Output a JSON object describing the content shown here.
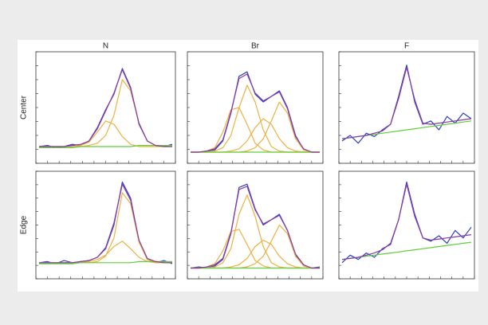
{
  "column_labels": [
    "N",
    "Br",
    "F"
  ],
  "row_labels": [
    "Center",
    "Edge"
  ],
  "chart_data": [
    {
      "type": "line",
      "ylim": [
        0,
        100
      ],
      "series": [
        {
          "color": "#2a3fc9",
          "values": [
            15,
            16,
            14,
            15,
            17,
            16,
            20,
            32,
            48,
            62,
            85,
            68,
            35,
            20,
            16,
            15,
            17
          ]
        },
        {
          "color": "#f0b040",
          "values": [
            15,
            15,
            15,
            15,
            15,
            16,
            19,
            28,
            38,
            35,
            24,
            17,
            15,
            15,
            15,
            15,
            15
          ]
        },
        {
          "color": "#f0b040",
          "values": [
            15,
            15,
            15,
            15,
            15,
            15,
            16,
            18,
            25,
            43,
            75,
            65,
            36,
            20,
            16,
            15,
            15
          ]
        },
        {
          "color": "#5fcf3a",
          "values": [
            14,
            14,
            14,
            14,
            14,
            15,
            15,
            15,
            15,
            15,
            15,
            15,
            16,
            16,
            16,
            16,
            16
          ]
        },
        {
          "color": "#8a3aa0",
          "values": [
            15,
            15,
            15,
            15,
            16,
            17,
            20,
            31,
            47,
            63,
            84,
            67,
            36,
            20,
            16,
            15,
            15
          ]
        }
      ]
    },
    {
      "type": "line",
      "ylim": [
        0,
        100
      ],
      "series": [
        {
          "color": "#2a3fc9",
          "values": [
            10,
            10,
            11,
            12,
            20,
            45,
            78,
            82,
            62,
            55,
            60,
            65,
            50,
            25,
            12,
            10,
            10
          ]
        },
        {
          "color": "#f0b040",
          "values": [
            10,
            10,
            11,
            14,
            28,
            48,
            50,
            35,
            18,
            12,
            10,
            10,
            10,
            10,
            10,
            10,
            10
          ]
        },
        {
          "color": "#f0b040",
          "values": [
            10,
            10,
            10,
            11,
            14,
            25,
            50,
            70,
            55,
            30,
            15,
            11,
            10,
            10,
            10,
            10,
            10
          ]
        },
        {
          "color": "#f0b040",
          "values": [
            10,
            10,
            10,
            10,
            10,
            11,
            13,
            20,
            32,
            40,
            35,
            22,
            14,
            11,
            10,
            10,
            10
          ]
        },
        {
          "color": "#f0b040",
          "values": [
            10,
            10,
            10,
            10,
            10,
            10,
            10,
            11,
            14,
            22,
            38,
            55,
            45,
            22,
            12,
            10,
            10
          ]
        },
        {
          "color": "#5fcf3a",
          "values": [
            10,
            10,
            10,
            10,
            10,
            10,
            10,
            10,
            10,
            10,
            10,
            10,
            10,
            10,
            10,
            10,
            10
          ]
        },
        {
          "color": "#8a3aa0",
          "values": [
            10,
            10,
            11,
            13,
            21,
            46,
            76,
            80,
            63,
            56,
            60,
            64,
            49,
            24,
            13,
            10,
            10
          ]
        }
      ]
    },
    {
      "type": "line",
      "ylim": [
        0,
        100
      ],
      "series": [
        {
          "color": "#2a3fc9",
          "values": [
            20,
            25,
            18,
            27,
            24,
            30,
            35,
            60,
            88,
            55,
            35,
            38,
            30,
            42,
            36,
            45,
            40
          ]
        },
        {
          "color": "#5fcf3a",
          "values": [
            22,
            23,
            24,
            25,
            26,
            27,
            28,
            29,
            30,
            31,
            32,
            33,
            34,
            35,
            36,
            37,
            38
          ]
        },
        {
          "color": "#8a3aa0",
          "values": [
            22,
            23,
            24,
            25,
            27,
            29,
            35,
            58,
            86,
            57,
            36,
            35,
            36,
            37,
            38,
            39,
            40
          ]
        }
      ]
    },
    {
      "type": "line",
      "ylim": [
        0,
        100
      ],
      "series": [
        {
          "color": "#2a3fc9",
          "values": [
            15,
            16,
            14,
            17,
            15,
            16,
            17,
            20,
            28,
            50,
            90,
            75,
            35,
            18,
            15,
            17,
            14
          ]
        },
        {
          "color": "#f0b040",
          "values": [
            15,
            15,
            15,
            15,
            15,
            15,
            16,
            18,
            22,
            30,
            35,
            28,
            20,
            16,
            15,
            15,
            15
          ]
        },
        {
          "color": "#f0b040",
          "values": [
            15,
            15,
            15,
            15,
            15,
            15,
            15,
            16,
            21,
            38,
            80,
            70,
            34,
            18,
            15,
            15,
            15
          ]
        },
        {
          "color": "#5fcf3a",
          "values": [
            14,
            14,
            14,
            14,
            14,
            15,
            15,
            15,
            15,
            15,
            15,
            15,
            16,
            16,
            16,
            16,
            16
          ]
        },
        {
          "color": "#8a3aa0",
          "values": [
            15,
            15,
            15,
            15,
            15,
            16,
            17,
            20,
            29,
            52,
            88,
            73,
            36,
            19,
            16,
            15,
            15
          ]
        }
      ]
    },
    {
      "type": "line",
      "ylim": [
        0,
        100
      ],
      "series": [
        {
          "color": "#2a3fc9",
          "values": [
            10,
            11,
            10,
            12,
            18,
            42,
            85,
            88,
            65,
            50,
            55,
            60,
            45,
            22,
            12,
            10,
            11
          ]
        },
        {
          "color": "#f0b040",
          "values": [
            10,
            10,
            11,
            14,
            26,
            44,
            46,
            32,
            17,
            12,
            10,
            10,
            10,
            10,
            10,
            10,
            10
          ]
        },
        {
          "color": "#f0b040",
          "values": [
            10,
            10,
            10,
            11,
            15,
            28,
            60,
            78,
            58,
            30,
            15,
            11,
            10,
            10,
            10,
            10,
            10
          ]
        },
        {
          "color": "#f0b040",
          "values": [
            10,
            10,
            10,
            10,
            10,
            11,
            13,
            19,
            30,
            36,
            32,
            21,
            14,
            11,
            10,
            10,
            10
          ]
        },
        {
          "color": "#f0b040",
          "values": [
            10,
            10,
            10,
            10,
            10,
            10,
            10,
            11,
            14,
            21,
            35,
            50,
            42,
            21,
            12,
            10,
            10
          ]
        },
        {
          "color": "#5fcf3a",
          "values": [
            10,
            10,
            10,
            10,
            10,
            10,
            10,
            10,
            10,
            10,
            10,
            10,
            10,
            10,
            10,
            10,
            10
          ]
        },
        {
          "color": "#8a3aa0",
          "values": [
            10,
            10,
            11,
            13,
            19,
            43,
            83,
            86,
            64,
            51,
            55,
            59,
            45,
            23,
            13,
            10,
            10
          ]
        }
      ]
    },
    {
      "type": "line",
      "ylim": [
        0,
        100
      ],
      "series": [
        {
          "color": "#2a3fc9",
          "values": [
            15,
            22,
            18,
            24,
            20,
            28,
            32,
            55,
            90,
            60,
            38,
            35,
            40,
            33,
            45,
            38,
            48
          ]
        },
        {
          "color": "#5fcf3a",
          "values": [
            18,
            19,
            20,
            21,
            22,
            23,
            24,
            25,
            26,
            27,
            28,
            29,
            30,
            31,
            32,
            33,
            34
          ]
        },
        {
          "color": "#8a3aa0",
          "values": [
            18,
            19,
            20,
            22,
            24,
            27,
            33,
            55,
            88,
            58,
            38,
            36,
            37,
            38,
            39,
            40,
            41
          ]
        }
      ]
    }
  ]
}
